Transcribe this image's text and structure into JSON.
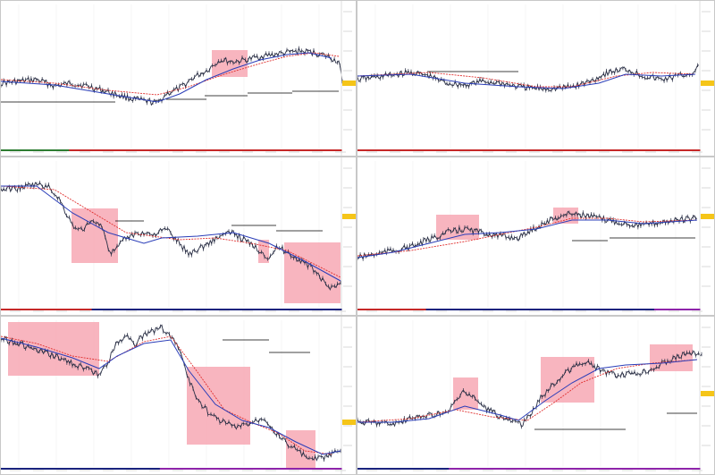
{
  "window": {
    "title": ""
  },
  "panes": [
    {
      "id": "p1",
      "title": "",
      "color_bar": [
        "#2e7d32",
        "#2e7d32",
        "#2e7d32",
        "#c62828",
        "#c62828",
        "#c62828",
        "#c62828",
        "#c62828",
        "#c62828",
        "#c62828",
        "#c62828",
        "#c62828",
        "#c62828",
        "#c62828",
        "#c62828"
      ],
      "price_tag_color": "#f5c518"
    },
    {
      "id": "p2",
      "title": "",
      "color_bar": [
        "#c62828",
        "#c62828",
        "#c62828",
        "#c62828",
        "#c62828",
        "#c62828",
        "#c62828",
        "#c62828",
        "#c62828",
        "#c62828",
        "#c62828",
        "#c62828",
        "#c62828",
        "#c62828",
        "#c62828"
      ],
      "price_tag_color": "#f5c518"
    },
    {
      "id": "p3",
      "title": "",
      "color_bar": [
        "#c62828",
        "#c62828",
        "#c62828",
        "#c62828",
        "#1a237e",
        "#1a237e",
        "#1a237e",
        "#1a237e",
        "#1a237e",
        "#1a237e",
        "#1a237e",
        "#1a237e",
        "#1a237e",
        "#1a237e",
        "#1a237e"
      ],
      "price_tag_color": "#f5c518"
    },
    {
      "id": "p4",
      "title": "",
      "color_bar": [
        "#c62828",
        "#c62828",
        "#c62828",
        "#1a237e",
        "#1a237e",
        "#1a237e",
        "#1a237e",
        "#1a237e",
        "#1a237e",
        "#1a237e",
        "#1a237e",
        "#1a237e",
        "#1a237e",
        "#8e24aa",
        "#8e24aa"
      ],
      "price_tag_color": "#f5c518"
    },
    {
      "id": "p5",
      "title": "",
      "color_bar": [
        "#1a237e",
        "#1a237e",
        "#1a237e",
        "#1a237e",
        "#1a237e",
        "#1a237e",
        "#1a237e",
        "#8e24aa",
        "#8e24aa",
        "#8e24aa",
        "#8e24aa",
        "#8e24aa",
        "#8e24aa",
        "#8e24aa",
        "#8e24aa"
      ],
      "price_tag_color": "#f5c518"
    },
    {
      "id": "p6",
      "title": "",
      "color_bar": [
        "#1a237e",
        "#1a237e",
        "#1a237e",
        "#1a237e",
        "#8e24aa",
        "#8e24aa",
        "#8e24aa",
        "#8e24aa",
        "#8e24aa",
        "#8e24aa",
        "#8e24aa",
        "#8e24aa",
        "#8e24aa",
        "#8e24aa",
        "#8e24aa"
      ],
      "price_tag_color": "#f5c518"
    }
  ],
  "colors": {
    "candles": "#2a2f45",
    "fast_ma": "#2a3db8",
    "slow_ma": "#e0302f",
    "highlight_zone": "#f7a8b4",
    "level_line": "#000000",
    "pane_border": "#c8c8c8"
  }
}
